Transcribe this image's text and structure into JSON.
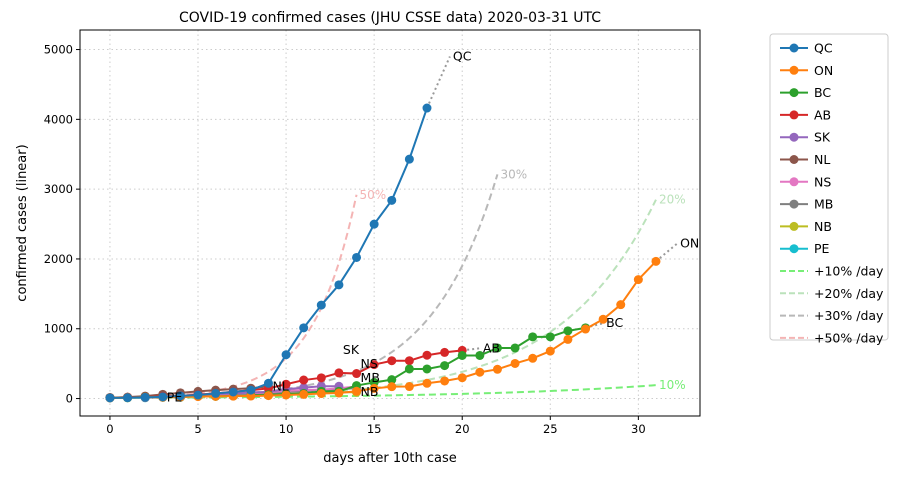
{
  "chart_data": {
    "type": "line",
    "title": "COVID-19 confirmed cases (JHU CSSE data) 2020-03-31 UTC",
    "xlabel": "days after 10th case",
    "ylabel": "confirmed cases (linear)",
    "xlim": [
      -1.7,
      33.5
    ],
    "ylim": [
      -250,
      5280
    ],
    "xticks": [
      0,
      5,
      10,
      15,
      20,
      25,
      30
    ],
    "yticks": [
      0,
      1000,
      2000,
      3000,
      4000,
      5000
    ],
    "grid": true,
    "legend_position": "outside-right",
    "series": [
      {
        "name": "QC",
        "color": "#1f77b4",
        "values": [
          10,
          13,
          17,
          24,
          39,
          50,
          74,
          94,
          121,
          219,
          628,
          1013,
          1339,
          1629,
          2021,
          2498,
          2840,
          3430,
          4162
        ],
        "extrap": [
          19.3,
          4900
        ],
        "label": "QC"
      },
      {
        "name": "ON",
        "color": "#ff7f0e",
        "values": [
          11,
          15,
          18,
          20,
          25,
          28,
          32,
          34,
          36,
          42,
          51,
          59,
          72,
          79,
          104,
          145,
          170,
          172,
          219,
          252,
          298,
          377,
          419,
          503,
          577,
          680,
          847,
          996,
          1136,
          1345,
          1704,
          1966
        ],
        "extrap": [
          32.2,
          2220
        ],
        "label": "ON"
      },
      {
        "name": "BC",
        "color": "#2ca02c",
        "values": [
          10,
          13,
          21,
          21,
          27,
          32,
          32,
          39,
          46,
          53,
          64,
          73,
          103,
          103,
          186,
          231,
          271,
          424,
          424,
          472,
          617,
          617,
          725,
          725,
          884,
          884,
          970,
          1013
        ],
        "extrap": [
          28,
          1080
        ],
        "label": "BC"
      },
      {
        "name": "AB",
        "color": "#d62728",
        "values": [
          14,
          19,
          23,
          29,
          39,
          56,
          74,
          97,
          119,
          146,
          205,
          265,
          297,
          367,
          358,
          486,
          542,
          542,
          621,
          661,
          690
        ],
        "extrap": [
          21,
          720
        ],
        "label": "AB"
      },
      {
        "name": "SK",
        "color": "#9467bd",
        "values": [
          10,
          15,
          16,
          20,
          26,
          52,
          66,
          72,
          86,
          95,
          134,
          156,
          176,
          176
        ],
        "extrap": null,
        "label": "SK"
      },
      {
        "name": "NL",
        "color": "#8c564b",
        "values": [
          10,
          20,
          35,
          60,
          82,
          102,
          120,
          135,
          148,
          175
        ],
        "extrap": null,
        "label": "NL"
      },
      {
        "name": "NS",
        "color": "#e377c2",
        "values": [
          12,
          14,
          15,
          21,
          28,
          41,
          51,
          68,
          73,
          90,
          110,
          122,
          127,
          147,
          173
        ],
        "extrap": null,
        "label": "NS"
      },
      {
        "name": "MB",
        "color": "#7f7f7f",
        "values": [
          15,
          17,
          18,
          20,
          21,
          35,
          36,
          39,
          64,
          72,
          96,
          103,
          127,
          127,
          152
        ],
        "extrap": null,
        "label": "MB"
      },
      {
        "name": "NB",
        "color": "#bcbd22",
        "values": [
          11,
          11,
          17,
          17,
          18,
          33,
          45,
          45,
          51,
          66,
          68,
          70,
          81,
          91,
          91
        ],
        "extrap": null,
        "label": "NB"
      },
      {
        "name": "PE",
        "color": "#17becf",
        "values": [
          11,
          11,
          11,
          18
        ],
        "extrap": null,
        "label": "PE"
      }
    ],
    "growth_lines": [
      {
        "name": "+10% /day",
        "rate": 0.1,
        "start": 10,
        "days": 31,
        "color": "#77ee77",
        "label": "10%"
      },
      {
        "name": "+20% /day",
        "rate": 0.2,
        "start": 10,
        "days": 31,
        "color": "#bbe2bb",
        "label": "20%"
      },
      {
        "name": "+30% /day",
        "rate": 0.3,
        "start": 10,
        "days": 22,
        "color": "#b8b8b8",
        "label": "30%"
      },
      {
        "name": "+50% /day",
        "rate": 0.5,
        "start": 10,
        "days": 14,
        "color": "#f4b4b4",
        "label": "50%"
      }
    ]
  }
}
